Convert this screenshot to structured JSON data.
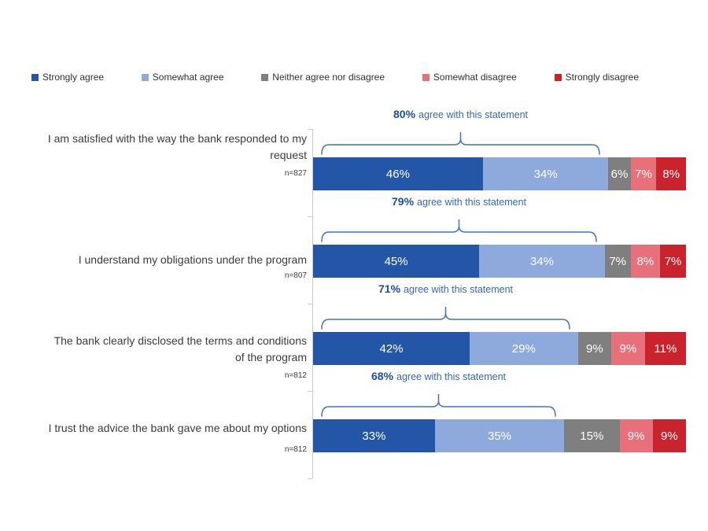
{
  "chart_data": {
    "type": "bar",
    "orientation": "horizontal",
    "stacked": true,
    "axis_range_pct": [
      0,
      100
    ],
    "legend_position": "top",
    "grid": false,
    "series": [
      {
        "name": "Strongly agree",
        "color": "#2356A6"
      },
      {
        "name": "Somewhat agree",
        "color": "#8EA9DB"
      },
      {
        "name": "Neither agree nor disagree",
        "color": "#7F7F7F"
      },
      {
        "name": "Somewhat disagree",
        "color": "#E7707A"
      },
      {
        "name": "Strongly disagree",
        "color": "#C9242D"
      }
    ],
    "rows": [
      {
        "statement": "I am satisfied with the way the bank responded to my request",
        "n": "n=827",
        "values": [
          46,
          34,
          6,
          7,
          8
        ],
        "labels": [
          "46%",
          "34%",
          "6%",
          "7%",
          "8%"
        ],
        "callout": {
          "pct": "80%",
          "text": "agree with this statement"
        }
      },
      {
        "statement": "I understand my obligations under the program",
        "n": "n=807",
        "values": [
          45,
          34,
          7,
          8,
          7
        ],
        "labels": [
          "45%",
          "34%",
          "7%",
          "8%",
          "7%"
        ],
        "callout": {
          "pct": "79%",
          "text": "agree with this statement"
        }
      },
      {
        "statement": "The bank clearly disclosed the terms and conditions of the program",
        "n": "n=812",
        "values": [
          42,
          29,
          9,
          9,
          11
        ],
        "labels": [
          "42%",
          "29%",
          "9%",
          "9%",
          "11%"
        ],
        "callout": {
          "pct": "71%",
          "text": "agree with this statement"
        }
      },
      {
        "statement": "I trust the advice the bank gave me about my options",
        "n": "n=812",
        "values": [
          33,
          35,
          15,
          9,
          9
        ],
        "labels": [
          "33%",
          "35%",
          "15%",
          "9%",
          "9%"
        ],
        "callout": {
          "pct": "68%",
          "text": "agree with this statement"
        }
      }
    ],
    "colors": {
      "callout_pct": "#1F4EA1",
      "callout_text": "#3765B5",
      "brace": "#4472C4",
      "axis": "#C9C9C9",
      "bar_label": "#FFFFFF",
      "category_text": "#3B3B3B",
      "legend_text": "#303030"
    }
  }
}
